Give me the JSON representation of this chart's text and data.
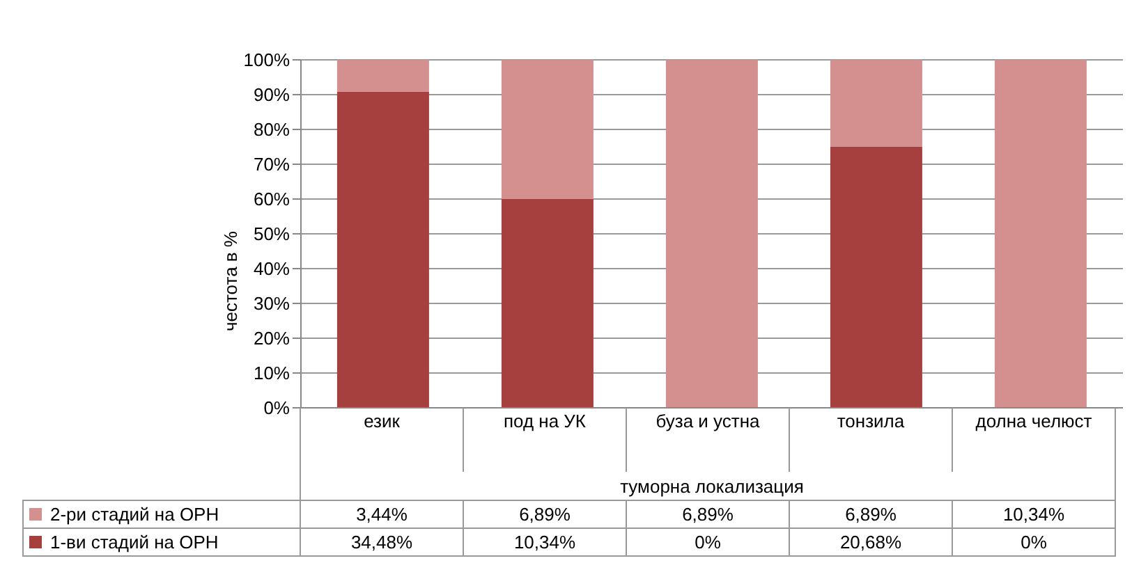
{
  "chart_data": [
    {
      "type": "bar",
      "stacked": true,
      "categories": [
        null,
        null,
        null,
        null,
        null
      ],
      "series": [
        {
          "color": "#a5403e",
          "values": [
            90.9,
            60.0,
            0,
            75.0,
            0
          ]
        },
        {
          "color": "#d4908f",
          "values": [
            9.1,
            40.0,
            100,
            25.0,
            100
          ]
        }
      ],
      "ylim": [
        0,
        100
      ],
      "yticks": [
        {
          "value": 0,
          "label": "0%"
        },
        {
          "value": 10,
          "label": "10%"
        },
        {
          "value": 20,
          "label": "20%"
        },
        {
          "value": 30,
          "label": "30%"
        },
        {
          "value": 40,
          "label": "40%"
        },
        {
          "value": 50,
          "label": "50%"
        },
        {
          "value": 60,
          "label": "60%"
        },
        {
          "value": 70,
          "label": "70%"
        },
        {
          "value": 80,
          "label": "80%"
        },
        {
          "value": 90,
          "label": "90%"
        },
        {
          "value": 100,
          "label": "100%"
        }
      ],
      "ylabel": "честота в %",
      "xlabel": "туморна локализация",
      "grid": "y",
      "tick_labels": "y"
    },
    {
      "type": "other",
      "categories": [
        "език",
        "под на УК",
        "буза и устна",
        "тонзила",
        "долна челюст"
      ],
      "series": [
        {
          "name": "1-ви стадий на ОРН",
          "color": "#a5403e",
          "values": [
            34.48,
            10.34,
            0,
            20.68,
            0
          ],
          "value_labels": [
            "34,48%",
            "10,34%",
            "0%",
            "20,68%",
            "0%"
          ]
        },
        {
          "name": "2-ри стадий на ОРН",
          "color": "#d4908f",
          "values": [
            3.44,
            6.89,
            6.89,
            6.89,
            10.34
          ],
          "value_labels": [
            "3,44%",
            "6,89%",
            "6,89%",
            "6,89%",
            "10,34%"
          ]
        }
      ],
      "data_labels": true,
      "legend": "bottom"
    }
  ]
}
